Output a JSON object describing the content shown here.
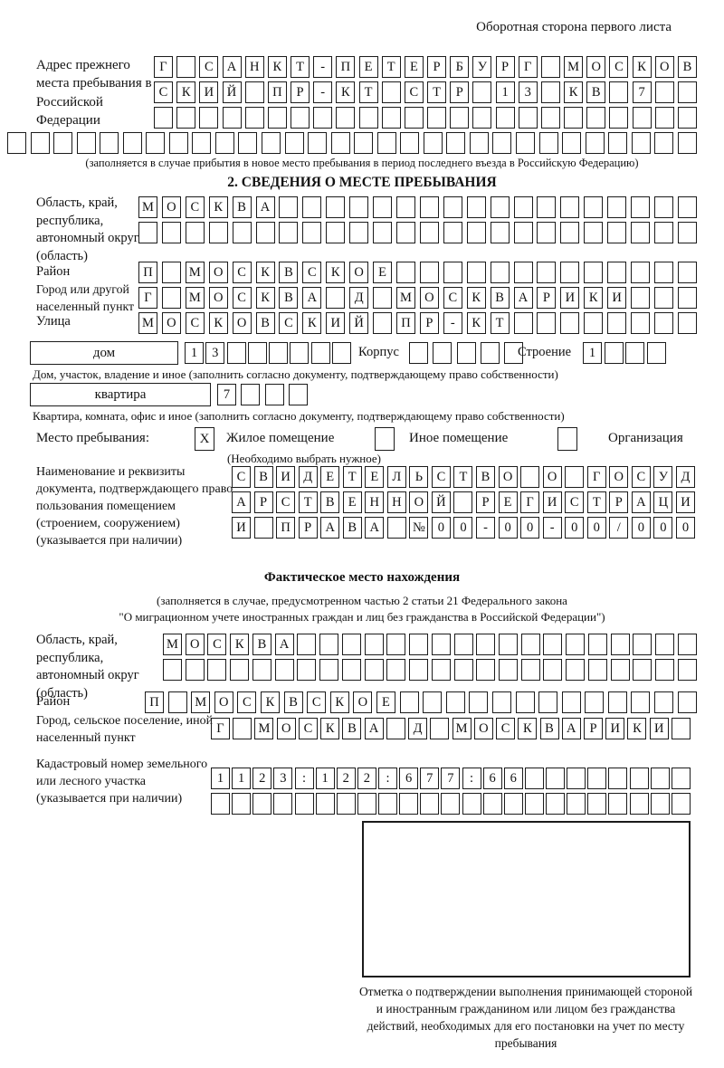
{
  "page": {
    "header_note": "Оборотная сторона первого листа"
  },
  "section1": {
    "label": "Адрес прежнего места пребывания в Российской Федерации",
    "grid_rows": [
      {
        "len": 24,
        "text": "Г САНКТ-ПЕТЕРБУРГ МОСКОВ"
      },
      {
        "len": 24,
        "text": "СКИЙ ПР-КТ СТР 13 КВ 7"
      },
      {
        "len": 24,
        "text": ""
      },
      {
        "len": 30,
        "text": ""
      }
    ],
    "note": "(заполняется в случае прибытия в новое место пребывания в период последнего въезда в Российскую Федерацию)"
  },
  "section2": {
    "title": "2. СВЕДЕНИЯ О МЕСТЕ ПРЕБЫВАНИЯ",
    "region": {
      "label": "Область, край, республика, автономный округ (область)",
      "rows": [
        {
          "len": 24,
          "text": "МОСКВА"
        },
        {
          "len": 24,
          "text": ""
        }
      ]
    },
    "district": {
      "label": "Район",
      "row": {
        "len": 24,
        "text": "П МОСКВСКОЕ"
      }
    },
    "city": {
      "label": "Город или другой населенный пункт",
      "row": {
        "len": 24,
        "text": "Г МОСКВА Д МОСКВАРИКИ"
      }
    },
    "street": {
      "label": "Улица",
      "row": {
        "len": 24,
        "text": "МОСКОВСКИЙ ПР-КТ"
      }
    },
    "house": {
      "box_label": "дом",
      "row": {
        "len": 8,
        "text": "13"
      },
      "korpus_label": "Корпус",
      "korpus_row": {
        "len": 5,
        "text": ""
      },
      "stroenie_label": "Строение",
      "stroenie_row": {
        "len": 4,
        "text": "1"
      },
      "note": "Дом, участок, владение и иное (заполнить согласно документу, подтверждающему право собственности)"
    },
    "apartment": {
      "box_label": "квартира",
      "row": {
        "len": 4,
        "text": "7"
      },
      "note": "Квартира, комната, офис и иное (заполнить согласно документу, подтверждающему право собственности)"
    },
    "stay_type": {
      "label": "Место пребывания:",
      "options": [
        {
          "label": "Жилое помещение",
          "checked": "X"
        },
        {
          "label": "Иное помещение",
          "checked": ""
        },
        {
          "label": "Организация",
          "checked": ""
        }
      ],
      "note": "(Необходимо выбрать нужное)"
    },
    "document": {
      "label": "Наименование и реквизиты документа, подтверждающего право пользования помещением (строением, сооружением) (указывается при наличии)",
      "rows": [
        {
          "len": 21,
          "text": "СВИДЕТЕЛЬСТВО О ГОСУД"
        },
        {
          "len": 21,
          "text": "АРСТВЕННОЙ РЕГИСТРАЦИ"
        },
        {
          "len": 21,
          "text": "И ПРАВА №00-00-00/000"
        }
      ]
    }
  },
  "section3": {
    "title": "Фактическое место нахождения",
    "note1": "(заполняется в случае, предусмотренном частью 2 статьи 21 Федерального закона",
    "note2": "\"О миграционном учете иностранных граждан и лиц без гражданства в Российской Федерации\")",
    "region": {
      "label": "Область, край, республика, автономный округ (область)",
      "rows": [
        {
          "len": 24,
          "text": "МОСКВА"
        },
        {
          "len": 24,
          "text": ""
        }
      ]
    },
    "district": {
      "label": "Район",
      "row": {
        "len": 24,
        "text": "П МОСКВСКОЕ"
      }
    },
    "city": {
      "label": "Город, сельское поселение, иной населенный пункт",
      "row": {
        "len": 22,
        "text": "Г МОСКВА Д МОСКВАРИКИ"
      }
    },
    "cadastral": {
      "label": "Кадастровый номер земельного или лесного участка (указывается при наличии)",
      "rows": [
        {
          "len": 23,
          "text": "1123:122:677:66"
        },
        {
          "len": 23,
          "text": ""
        }
      ]
    },
    "stamp_caption": "Отметка о подтверждении выполнения принимающей стороной и иностранным гражданином или лицом без гражданства действий, необходимых для его постановки на учет по месту пребывания"
  }
}
